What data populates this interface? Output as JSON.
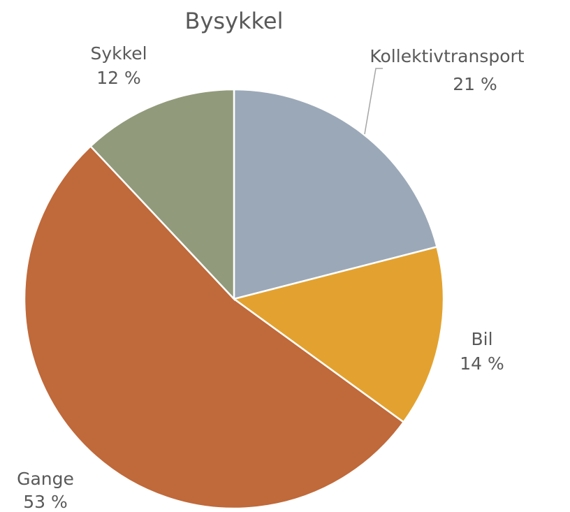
{
  "chart_data": {
    "type": "pie",
    "title": "Bysykkel",
    "categories": [
      "Kollektivtransport",
      "Bil",
      "Gange",
      "Sykkel"
    ],
    "values": [
      21,
      14,
      53,
      12
    ],
    "value_labels": [
      "21 %",
      "14 %",
      "53 %",
      "12 %"
    ],
    "colors": [
      "#9ba8b8",
      "#e3a22f",
      "#c0693a",
      "#919a7a"
    ]
  }
}
